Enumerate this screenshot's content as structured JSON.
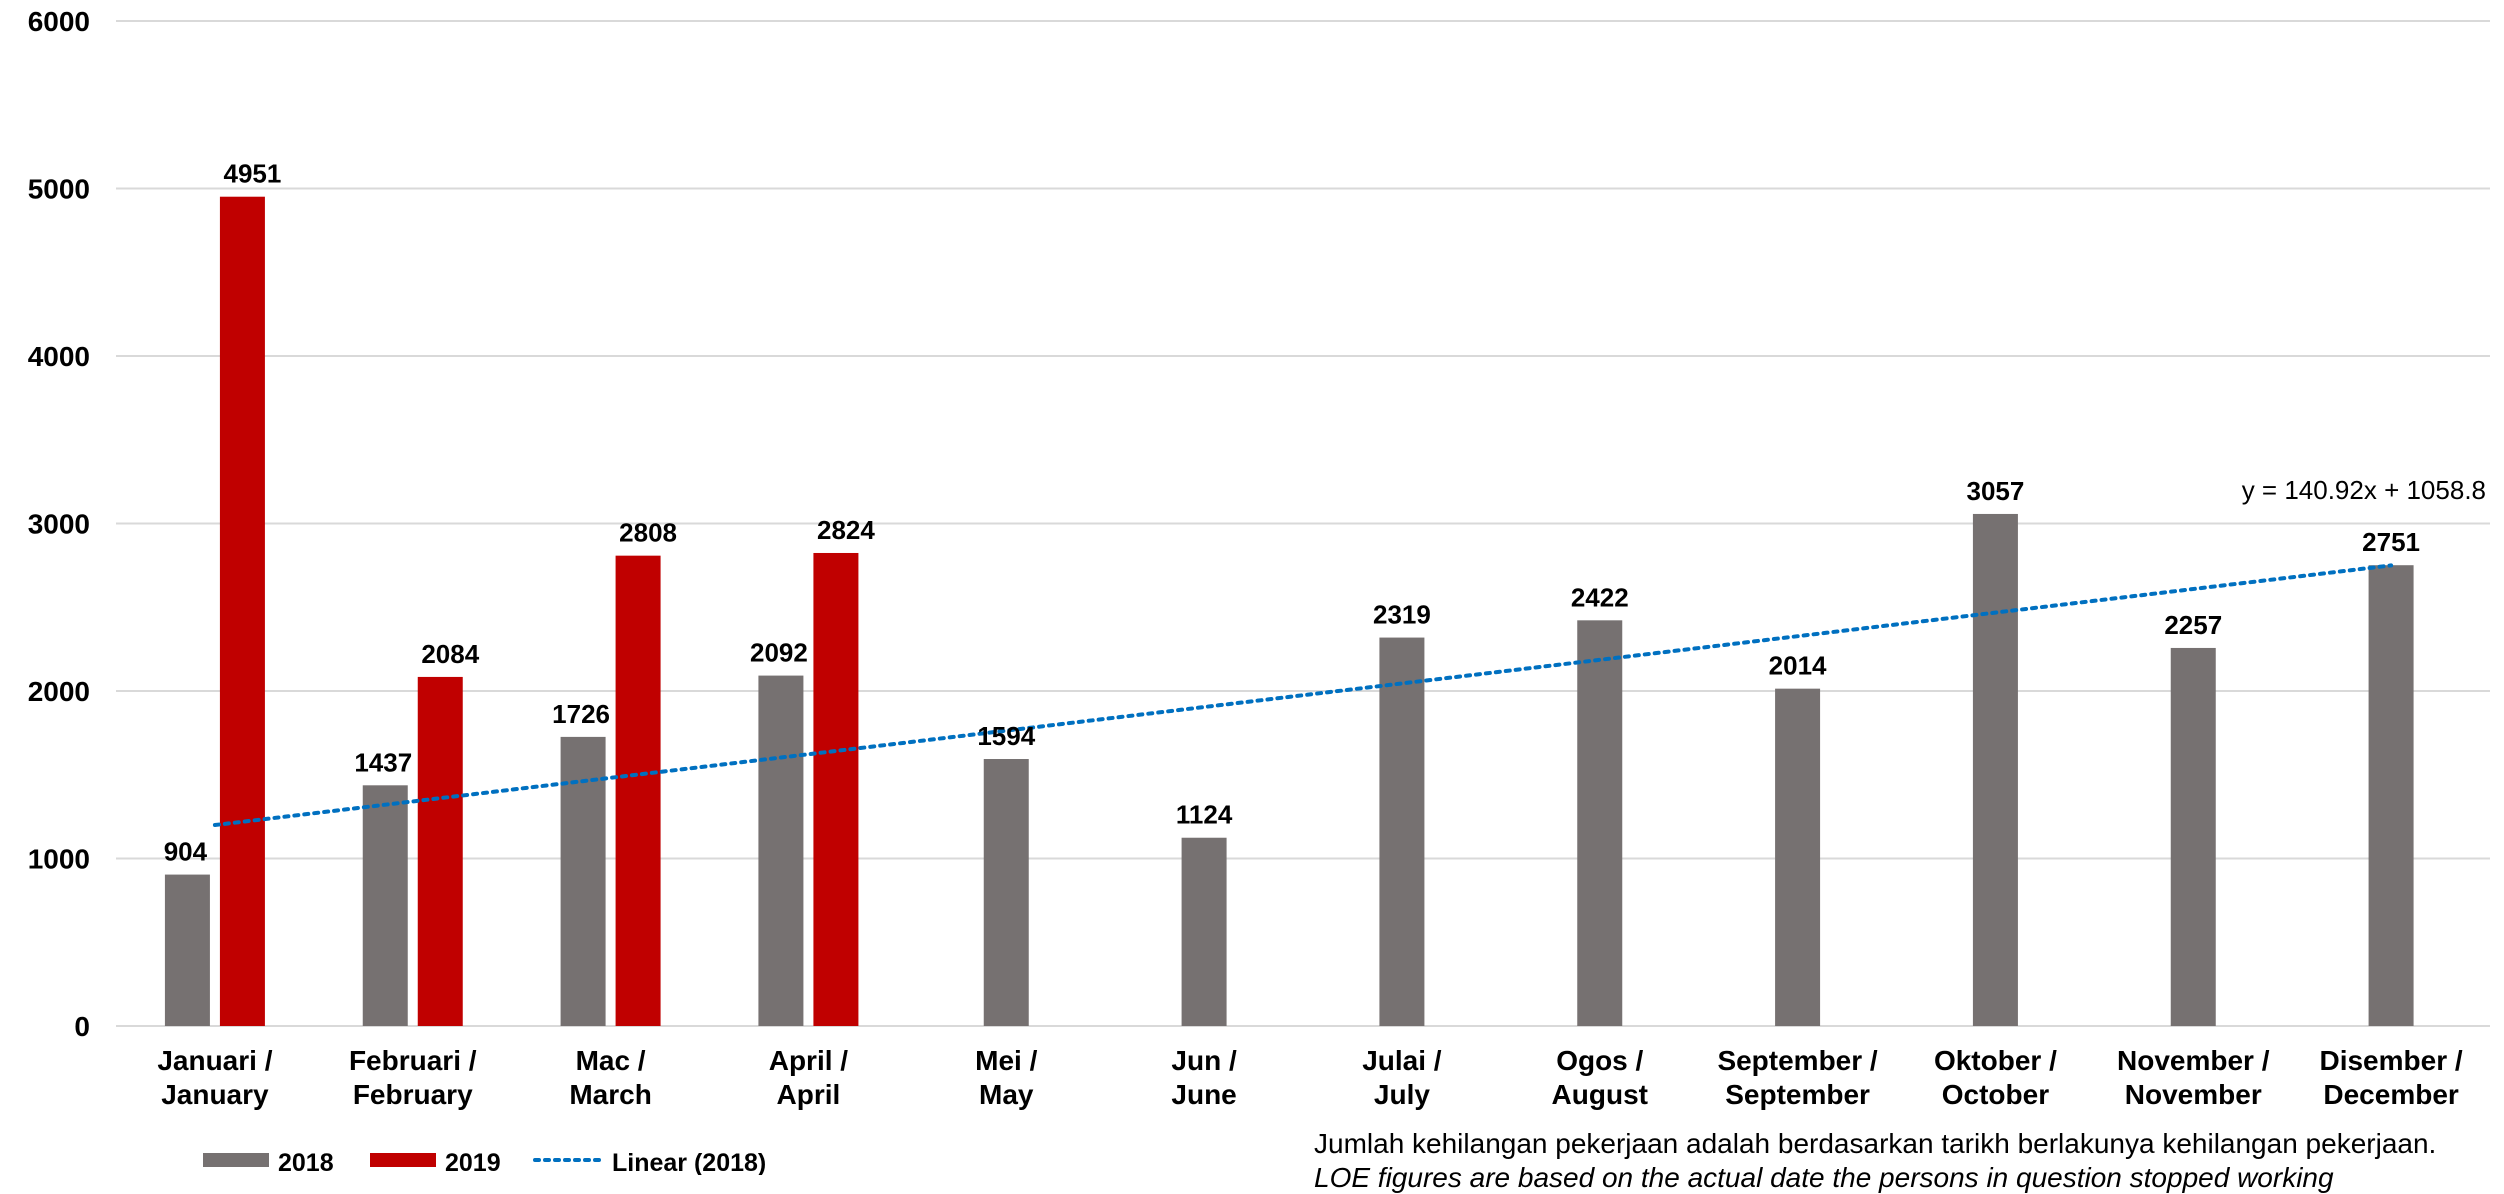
{
  "chart_data": {
    "type": "bar",
    "categories": [
      [
        "Januari /",
        "January"
      ],
      [
        "Februari /",
        "February"
      ],
      [
        "Mac /",
        "March"
      ],
      [
        "April /",
        "April"
      ],
      [
        "Mei /",
        "May"
      ],
      [
        "Jun /",
        "June"
      ],
      [
        "Julai /",
        "July"
      ],
      [
        "Ogos /",
        "August"
      ],
      [
        "September /",
        "September"
      ],
      [
        "Oktober /",
        "October"
      ],
      [
        "November /",
        "November"
      ],
      [
        "Disember /",
        "December"
      ]
    ],
    "series": [
      {
        "name": "2018",
        "color": "#767171",
        "values": [
          904,
          1437,
          1726,
          2092,
          1594,
          1124,
          2319,
          2422,
          2014,
          3057,
          2257,
          2751
        ]
      },
      {
        "name": "2019",
        "color": "#C00000",
        "values": [
          4951,
          2084,
          2808,
          2824,
          null,
          null,
          null,
          null,
          null,
          null,
          null,
          null
        ]
      }
    ],
    "trendline": {
      "name": "Linear (2018)",
      "color": "#0070C0",
      "slope": 140.92,
      "intercept": 1058.8,
      "equation": "y = 140.92x + 1058.8"
    },
    "ylim": [
      0,
      6000
    ],
    "yticks": [
      0,
      1000,
      2000,
      3000,
      4000,
      5000,
      6000
    ],
    "grid": true,
    "legend_position": "bottom-left"
  },
  "footnote": {
    "line1": "Jumlah kehilangan pekerjaan adalah berdasarkan tarikh berlakunya kehilangan pekerjaan.",
    "line2": "LOE figures are based on the actual date the persons in question stopped working"
  }
}
